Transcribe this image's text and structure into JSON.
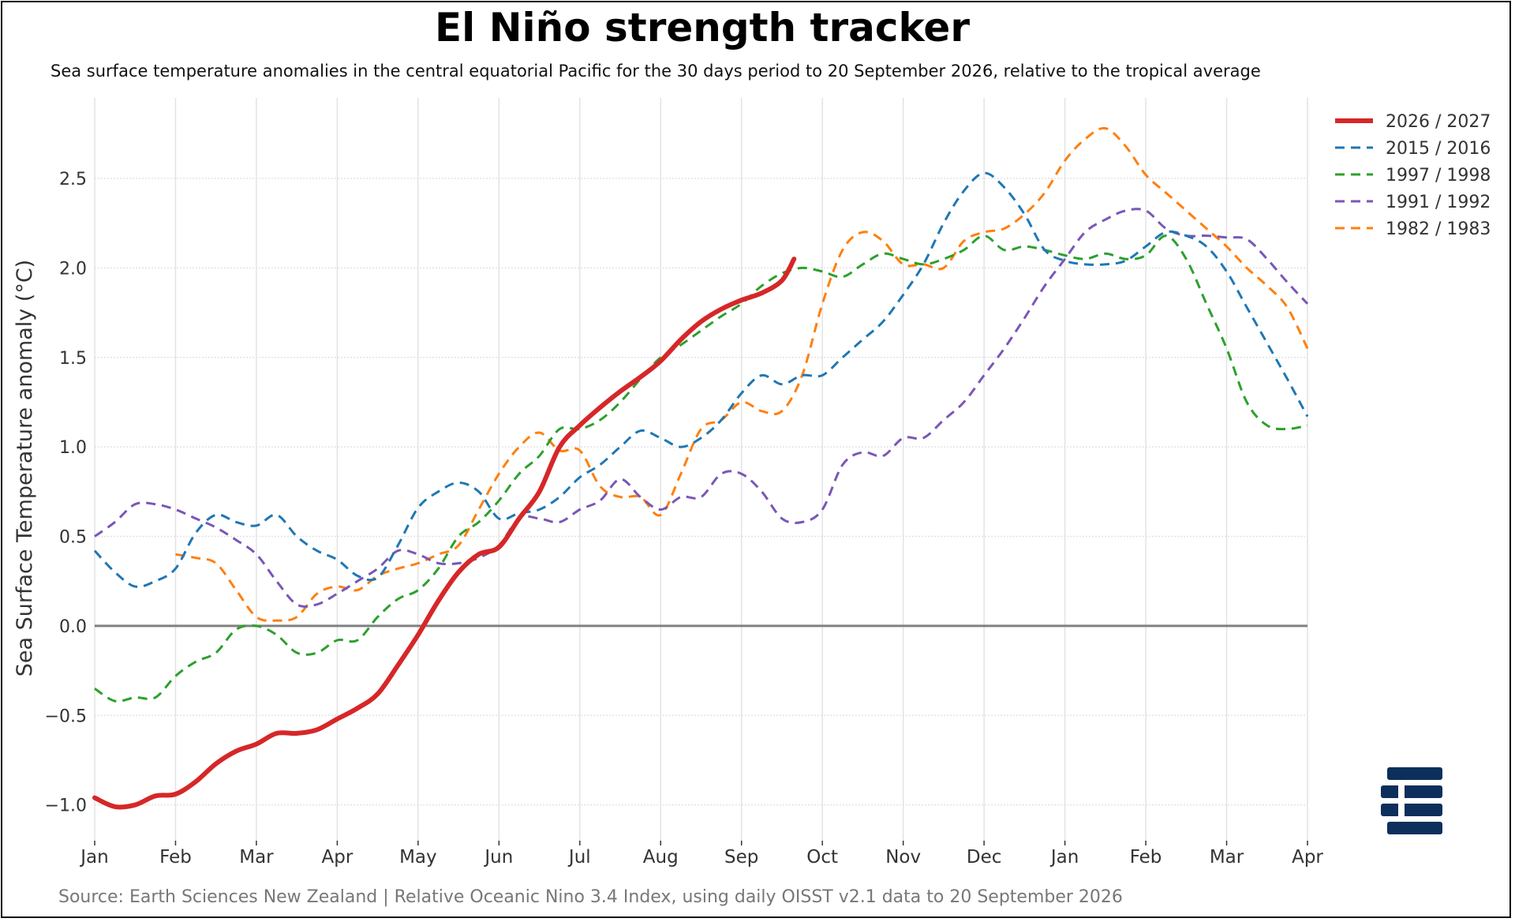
{
  "chart_data": {
    "type": "line",
    "title": "El Niño strength tracker",
    "subtitle": "Sea surface temperature anomalies in the central equatorial Pacific for the 30 days period to 20 September 2026, relative to the tropical average",
    "ylabel": "Sea Surface Temperature anomaly (°C)",
    "xlabel": "",
    "source": "Source: Earth Sciences New Zealand | Relative Oceanic Nino 3.4 Index, using daily OISST v2.1 data to 20 September 2026",
    "ylim": [
      -1.2,
      2.95
    ],
    "yticks": [
      -1.0,
      -0.5,
      0.0,
      0.5,
      1.0,
      1.5,
      2.0,
      2.5
    ],
    "ytick_labels": [
      "−1.0",
      "−0.5",
      "0.0",
      "0.5",
      "1.0",
      "1.5",
      "2.0",
      "2.5"
    ],
    "xticks": [
      "Jan",
      "Feb",
      "Mar",
      "Apr",
      "May",
      "Jun",
      "Jul",
      "Aug",
      "Sep",
      "Oct",
      "Nov",
      "Dec",
      "Jan",
      "Feb",
      "Mar",
      "Apr"
    ],
    "x_unit": "months from January of the first year",
    "xlim": [
      0,
      15
    ],
    "grid": true,
    "legend_position": "top-right",
    "zero_line_color": "#808080",
    "series": [
      {
        "name": "2026 / 2027",
        "color": "#d62728",
        "dashed": false,
        "x": [
          0,
          0.25,
          0.5,
          0.75,
          1,
          1.25,
          1.5,
          1.75,
          2,
          2.25,
          2.5,
          2.75,
          3,
          3.25,
          3.5,
          3.75,
          4,
          4.25,
          4.5,
          4.75,
          5,
          5.25,
          5.5,
          5.75,
          6,
          6.25,
          6.5,
          6.75,
          7,
          7.25,
          7.5,
          7.75,
          8,
          8.25,
          8.5,
          8.65
        ],
        "y": [
          -0.96,
          -1.01,
          -1.0,
          -0.95,
          -0.94,
          -0.87,
          -0.77,
          -0.7,
          -0.66,
          -0.6,
          -0.6,
          -0.58,
          -0.52,
          -0.46,
          -0.38,
          -0.22,
          -0.05,
          0.14,
          0.3,
          0.4,
          0.44,
          0.6,
          0.75,
          1.0,
          1.12,
          1.22,
          1.31,
          1.39,
          1.48,
          1.6,
          1.7,
          1.77,
          1.82,
          1.86,
          1.93,
          2.05
        ]
      },
      {
        "name": "2015 / 2016",
        "color": "#1f77b4",
        "dashed": true,
        "x": [
          0,
          0.25,
          0.5,
          0.75,
          1,
          1.25,
          1.5,
          1.75,
          2,
          2.25,
          2.5,
          2.75,
          3,
          3.25,
          3.5,
          3.75,
          4,
          4.25,
          4.5,
          4.75,
          5,
          5.25,
          5.5,
          5.75,
          6,
          6.25,
          6.5,
          6.75,
          7,
          7.25,
          7.5,
          7.75,
          8,
          8.25,
          8.5,
          8.75,
          9,
          9.25,
          9.5,
          9.75,
          10,
          10.25,
          10.5,
          10.75,
          11,
          11.25,
          11.5,
          11.75,
          12,
          12.25,
          12.5,
          12.75,
          13,
          13.25,
          13.5,
          13.75,
          14,
          14.25,
          14.5,
          14.75,
          15
        ],
        "y": [
          0.42,
          0.3,
          0.22,
          0.25,
          0.32,
          0.52,
          0.62,
          0.58,
          0.56,
          0.62,
          0.5,
          0.42,
          0.37,
          0.28,
          0.27,
          0.45,
          0.66,
          0.75,
          0.8,
          0.75,
          0.6,
          0.63,
          0.65,
          0.72,
          0.83,
          0.9,
          1.0,
          1.09,
          1.05,
          1.0,
          1.05,
          1.15,
          1.3,
          1.4,
          1.35,
          1.4,
          1.4,
          1.5,
          1.6,
          1.7,
          1.85,
          2.02,
          2.25,
          2.43,
          2.53,
          2.45,
          2.3,
          2.1,
          2.04,
          2.02,
          2.02,
          2.04,
          2.12,
          2.2,
          2.18,
          2.12,
          1.98,
          1.78,
          1.58,
          1.38,
          1.17
        ]
      },
      {
        "name": "1997 / 1998",
        "color": "#2ca02c",
        "dashed": true,
        "x": [
          0,
          0.25,
          0.5,
          0.75,
          1,
          1.25,
          1.5,
          1.75,
          2,
          2.25,
          2.5,
          2.75,
          3,
          3.25,
          3.5,
          3.75,
          4,
          4.25,
          4.5,
          4.75,
          5,
          5.25,
          5.5,
          5.75,
          6,
          6.25,
          6.5,
          6.75,
          7,
          7.25,
          7.5,
          7.75,
          8,
          8.25,
          8.5,
          8.75,
          9,
          9.25,
          9.5,
          9.75,
          10,
          10.25,
          10.5,
          10.75,
          11,
          11.25,
          11.5,
          11.75,
          12,
          12.25,
          12.5,
          12.75,
          13,
          13.25,
          13.5,
          13.75,
          14,
          14.25,
          14.5,
          14.75,
          15
        ],
        "y": [
          -0.35,
          -0.42,
          -0.4,
          -0.4,
          -0.28,
          -0.2,
          -0.15,
          -0.02,
          0.0,
          -0.05,
          -0.15,
          -0.15,
          -0.08,
          -0.08,
          0.05,
          0.15,
          0.2,
          0.32,
          0.5,
          0.58,
          0.7,
          0.85,
          0.95,
          1.1,
          1.1,
          1.15,
          1.25,
          1.38,
          1.5,
          1.57,
          1.65,
          1.73,
          1.8,
          1.9,
          1.97,
          2.0,
          1.98,
          1.95,
          2.02,
          2.08,
          2.05,
          2.02,
          2.05,
          2.1,
          2.18,
          2.1,
          2.12,
          2.1,
          2.07,
          2.05,
          2.08,
          2.05,
          2.07,
          2.18,
          2.05,
          1.8,
          1.55,
          1.25,
          1.12,
          1.1,
          1.12
        ]
      },
      {
        "name": "1991 / 1992",
        "color": "#7a56b8",
        "dashed": true,
        "x": [
          0,
          0.25,
          0.5,
          0.75,
          1,
          1.25,
          1.5,
          1.75,
          2,
          2.25,
          2.5,
          2.75,
          3,
          3.25,
          3.5,
          3.75,
          4,
          4.25,
          4.5,
          4.75,
          5,
          5.25,
          5.5,
          5.75,
          6,
          6.25,
          6.5,
          6.75,
          7,
          7.25,
          7.5,
          7.75,
          8,
          8.25,
          8.5,
          8.75,
          9,
          9.25,
          9.5,
          9.75,
          10,
          10.25,
          10.5,
          10.75,
          11,
          11.25,
          11.5,
          11.75,
          12,
          12.25,
          12.5,
          12.75,
          13,
          13.25,
          13.5,
          13.75,
          14,
          14.25,
          14.5,
          14.75,
          15
        ],
        "y": [
          0.5,
          0.58,
          0.68,
          0.68,
          0.65,
          0.6,
          0.55,
          0.48,
          0.4,
          0.25,
          0.12,
          0.12,
          0.18,
          0.25,
          0.32,
          0.42,
          0.4,
          0.35,
          0.35,
          0.38,
          0.45,
          0.6,
          0.6,
          0.58,
          0.65,
          0.7,
          0.82,
          0.72,
          0.65,
          0.72,
          0.72,
          0.85,
          0.85,
          0.75,
          0.6,
          0.58,
          0.65,
          0.9,
          0.97,
          0.95,
          1.05,
          1.05,
          1.15,
          1.25,
          1.4,
          1.55,
          1.72,
          1.9,
          2.05,
          2.2,
          2.27,
          2.32,
          2.32,
          2.22,
          2.18,
          2.18,
          2.17,
          2.16,
          2.05,
          1.92,
          1.8
        ]
      },
      {
        "name": "1982 / 1983",
        "color": "#ff7f0e",
        "dashed": true,
        "x": [
          1,
          1.25,
          1.5,
          1.75,
          2,
          2.25,
          2.5,
          2.75,
          3,
          3.25,
          3.5,
          3.75,
          4,
          4.25,
          4.5,
          4.75,
          5,
          5.25,
          5.5,
          5.75,
          6,
          6.25,
          6.5,
          6.75,
          7,
          7.25,
          7.5,
          7.75,
          8,
          8.25,
          8.5,
          8.75,
          9,
          9.25,
          9.5,
          9.75,
          10,
          10.25,
          10.5,
          10.75,
          11,
          11.25,
          11.5,
          11.75,
          12,
          12.25,
          12.5,
          12.75,
          13,
          13.25,
          13.5,
          13.75,
          14,
          14.25,
          14.5,
          14.75,
          15
        ],
        "y": [
          0.4,
          0.38,
          0.35,
          0.2,
          0.05,
          0.03,
          0.05,
          0.18,
          0.22,
          0.2,
          0.28,
          0.32,
          0.35,
          0.4,
          0.45,
          0.65,
          0.85,
          1.0,
          1.08,
          0.98,
          0.98,
          0.78,
          0.72,
          0.72,
          0.62,
          0.85,
          1.1,
          1.15,
          1.25,
          1.2,
          1.2,
          1.4,
          1.8,
          2.1,
          2.2,
          2.15,
          2.02,
          2.02,
          2.0,
          2.15,
          2.2,
          2.22,
          2.3,
          2.42,
          2.6,
          2.72,
          2.78,
          2.68,
          2.52,
          2.42,
          2.32,
          2.22,
          2.12,
          2.0,
          1.9,
          1.78,
          1.55
        ]
      }
    ]
  },
  "logo": {
    "name": "stacked-bars-logo",
    "color": "#0d2f5b"
  }
}
